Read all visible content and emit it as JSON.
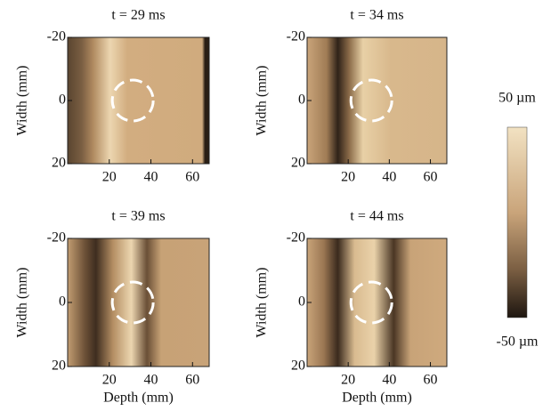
{
  "chart_data": [
    {
      "type": "heatmap",
      "title": "t = 29 ms",
      "ylabel": "Width (mm)",
      "xlim": [
        0,
        68
      ],
      "xticks": [
        20,
        40,
        60
      ],
      "ylim": [
        -20,
        20
      ],
      "yticks": [
        -20,
        0,
        20
      ]
    },
    {
      "type": "heatmap",
      "title": "t = 34 ms",
      "ylabel": "Width (mm)",
      "xlim": [
        0,
        68
      ],
      "xticks": [
        20,
        40,
        60
      ],
      "ylim": [
        -20,
        20
      ],
      "yticks": [
        -20,
        0,
        20
      ]
    },
    {
      "type": "heatmap",
      "title": "t = 39 ms",
      "xlabel": "Depth (mm)",
      "ylabel": "Width (mm)",
      "xlim": [
        0,
        68
      ],
      "xticks": [
        20,
        40,
        60
      ],
      "ylim": [
        -20,
        20
      ],
      "yticks": [
        -20,
        0,
        20
      ]
    },
    {
      "type": "heatmap",
      "title": "t = 44 ms",
      "xlabel": "Depth (mm)",
      "ylabel": "Width (mm)",
      "xlim": [
        0,
        68
      ],
      "xticks": [
        20,
        40,
        60
      ],
      "ylim": [
        -20,
        20
      ],
      "yticks": [
        -20,
        0,
        20
      ]
    },
    {
      "type": "colorbar",
      "ylim": [
        -50,
        50
      ],
      "yticks": [
        {
          "value": 50,
          "label": "50 µm"
        },
        {
          "value": -50,
          "label": "-50 µm"
        }
      ]
    }
  ]
}
